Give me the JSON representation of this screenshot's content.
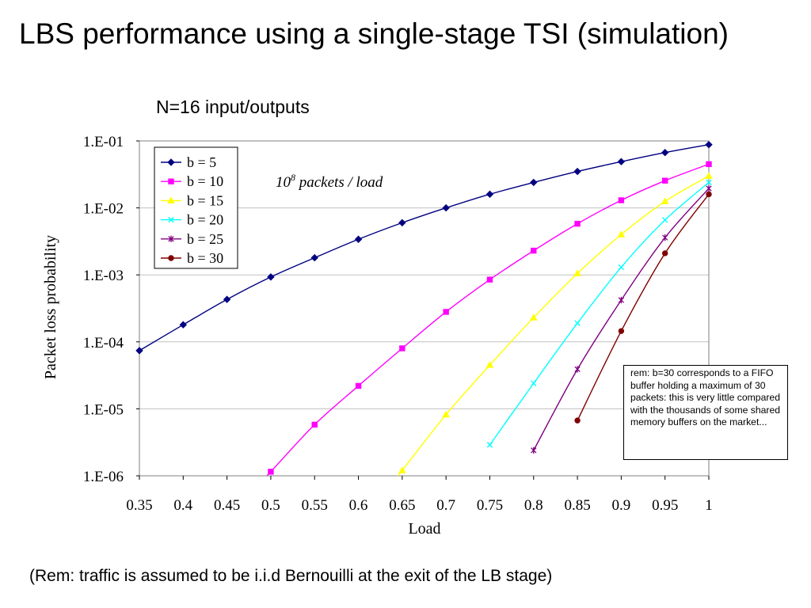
{
  "slide": {
    "title": "LBS performance using a single-stage TSI (simulation)",
    "footer": "(Rem: traffic is assumed to be i.i.d Bernouilli at the exit of the LB stage)"
  },
  "chart_data": {
    "type": "line",
    "title": "N=16 input/outputs",
    "annotation": {
      "base": "10",
      "exponent": "8",
      "text": " packets / load"
    },
    "xlabel": "Load",
    "ylabel": "Packet loss probability",
    "x_ticks": [
      "0.35",
      "0.4",
      "0.45",
      "0.5",
      "0.55",
      "0.6",
      "0.65",
      "0.7",
      "0.75",
      "0.8",
      "0.85",
      "0.9",
      "0.95",
      "1"
    ],
    "y_ticks": [
      "1.E-01",
      "1.E-02",
      "1.E-03",
      "1.E-04",
      "1.E-05",
      "1.E-06"
    ],
    "xlim": [
      0.35,
      1.0
    ],
    "ylim": [
      1e-06,
      0.1
    ],
    "y_scale": "log",
    "grid": "horizontal",
    "legend_position": "top-left",
    "series": [
      {
        "name": "b = 5",
        "color": "#000080",
        "marker": "diamond",
        "x": [
          0.35,
          0.4,
          0.45,
          0.5,
          0.55,
          0.6,
          0.65,
          0.7,
          0.75,
          0.8,
          0.85,
          0.9,
          0.95,
          1.0
        ],
        "y": [
          7.4e-05,
          0.00018,
          0.00043,
          0.00093,
          0.0018,
          0.0034,
          0.006,
          0.01,
          0.016,
          0.024,
          0.035,
          0.049,
          0.067,
          0.088
        ]
      },
      {
        "name": "b = 10",
        "color": "#FF00FF",
        "marker": "square",
        "x": [
          0.5,
          0.55,
          0.6,
          0.65,
          0.7,
          0.75,
          0.8,
          0.85,
          0.9,
          0.95,
          1.0
        ],
        "y": [
          1.15e-06,
          5.8e-06,
          2.2e-05,
          8e-05,
          0.00028,
          0.00085,
          0.0023,
          0.0058,
          0.013,
          0.0255,
          0.045
        ]
      },
      {
        "name": "b = 15",
        "color": "#FFFF00",
        "marker": "triangle",
        "x": [
          0.65,
          0.7,
          0.75,
          0.8,
          0.85,
          0.9,
          0.95,
          1.0
        ],
        "y": [
          1.2e-06,
          8.2e-06,
          4.5e-05,
          0.00023,
          0.00105,
          0.004,
          0.0125,
          0.03
        ]
      },
      {
        "name": "b = 20",
        "color": "#00FFFF",
        "marker": "x",
        "x": [
          0.75,
          0.8,
          0.85,
          0.9,
          0.95,
          1.0
        ],
        "y": [
          2.9e-06,
          2.4e-05,
          0.00019,
          0.0013,
          0.0066,
          0.024
        ]
      },
      {
        "name": "b = 25",
        "color": "#800080",
        "marker": "star",
        "x": [
          0.8,
          0.85,
          0.9,
          0.95,
          1.0
        ],
        "y": [
          2.4e-06,
          3.9e-05,
          0.00042,
          0.0036,
          0.0195
        ]
      },
      {
        "name": "b = 30",
        "color": "#800000",
        "marker": "circle",
        "x": [
          0.85,
          0.9,
          0.95,
          1.0
        ],
        "y": [
          6.7e-06,
          0.000145,
          0.0021,
          0.016
        ]
      }
    ],
    "note": "rem: b=30 corresponds to a FIFO buffer holding a maximum of 30 packets: this is very little compared with the thousands of some shared memory buffers on the market..."
  }
}
